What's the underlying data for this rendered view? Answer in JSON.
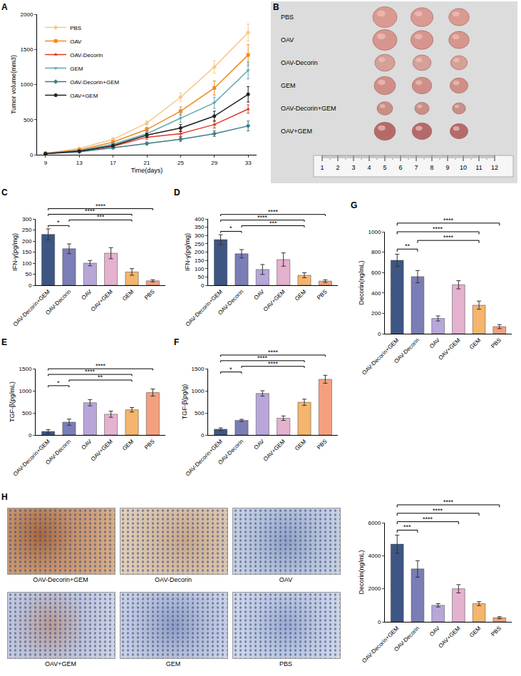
{
  "chart_data": [
    {
      "panel": "A",
      "type": "line",
      "x_label": "Time(days)",
      "y_label": "Tumor volume(mm3)",
      "x": [
        9,
        13,
        17,
        21,
        25,
        29,
        33
      ],
      "xlim": [
        8,
        34
      ],
      "xticks": [
        9,
        13,
        17,
        21,
        25,
        29,
        33
      ],
      "ylim": [
        0,
        2000
      ],
      "yticks": [
        0,
        500,
        1000,
        1500,
        2000
      ],
      "grid": false,
      "legend": "top left",
      "series": [
        {
          "name": "PBS",
          "color": "#f5c98e",
          "marker": "diamond",
          "values": [
            20,
            90,
            220,
            450,
            820,
            1250,
            1740
          ],
          "errors": [
            5,
            10,
            20,
            30,
            60,
            90,
            120
          ]
        },
        {
          "name": "OAV",
          "color": "#f08a24",
          "marker": "square",
          "values": [
            20,
            70,
            180,
            360,
            620,
            950,
            1420
          ],
          "errors": [
            5,
            10,
            20,
            30,
            60,
            100,
            150
          ]
        },
        {
          "name": "OAV-Decorin",
          "color": "#e03c28",
          "marker": "triangle-up",
          "values": [
            15,
            50,
            120,
            250,
            300,
            430,
            650
          ],
          "errors": [
            3,
            8,
            15,
            30,
            40,
            50,
            60
          ]
        },
        {
          "name": "GEM",
          "color": "#5fa8b0",
          "marker": "triangle-down",
          "values": [
            15,
            60,
            150,
            300,
            520,
            740,
            1200
          ],
          "errors": [
            4,
            10,
            20,
            40,
            60,
            80,
            120
          ]
        },
        {
          "name": "OAV-Decorin+GEM",
          "color": "#3e7c86",
          "marker": "diamond",
          "values": [
            15,
            40,
            100,
            160,
            220,
            300,
            410
          ],
          "errors": [
            3,
            6,
            12,
            20,
            30,
            40,
            70
          ]
        },
        {
          "name": "OAV+GEM",
          "color": "#222222",
          "marker": "circle",
          "values": [
            15,
            50,
            130,
            280,
            380,
            550,
            860
          ],
          "errors": [
            3,
            8,
            20,
            30,
            50,
            70,
            110
          ]
        }
      ]
    },
    {
      "panel": "C",
      "type": "bar",
      "y_label": "IFN-γ(pg/mg)",
      "categories": [
        "OAV-Decorin+GEM",
        "OAV-Decorin",
        "OAV",
        "OAV+GEM",
        "GEM",
        "PBS"
      ],
      "values": [
        230,
        165,
        100,
        145,
        60,
        20
      ],
      "errors": [
        25,
        22,
        12,
        25,
        15,
        5
      ],
      "colors": [
        "#3e5683",
        "#7b7db6",
        "#b8a6d9",
        "#e4b1cf",
        "#f4b56e",
        "#f4a07e"
      ],
      "ylim": [
        0,
        300
      ],
      "yticks": [
        0,
        50,
        100,
        150,
        200,
        250,
        300
      ],
      "grid": false,
      "significance": [
        {
          "from": "OAV-Decorin+GEM",
          "to": "PBS",
          "label": "****"
        },
        {
          "from": "OAV-Decorin+GEM",
          "to": "GEM",
          "label": "****"
        },
        {
          "from": "OAV-Decorin+GEM",
          "to": "OAV-Decorin",
          "label": "*"
        },
        {
          "from": "OAV-Decorin",
          "to": "GEM",
          "label": "***"
        }
      ]
    },
    {
      "panel": "D",
      "type": "bar",
      "y_label": "IFN-γ(pg/mg)",
      "categories": [
        "OAV-Decorin+GEM",
        "OAV-Decorin",
        "OAV",
        "OAV+GEM",
        "GEM",
        "PBS"
      ],
      "values": [
        275,
        190,
        95,
        155,
        60,
        25
      ],
      "errors": [
        30,
        25,
        30,
        40,
        15,
        8
      ],
      "colors": [
        "#3e5683",
        "#7b7db6",
        "#b8a6d9",
        "#e4b1cf",
        "#f4b56e",
        "#f4a07e"
      ],
      "ylim": [
        0,
        400
      ],
      "yticks": [
        0,
        50,
        100,
        150,
        200,
        250,
        300,
        350,
        400
      ],
      "grid": false,
      "significance": [
        {
          "from": "OAV-Decorin+GEM",
          "to": "PBS",
          "label": "****"
        },
        {
          "from": "OAV-Decorin+GEM",
          "to": "GEM",
          "label": "****"
        },
        {
          "from": "OAV-Decorin+GEM",
          "to": "OAV-Decorin",
          "label": "*"
        },
        {
          "from": "OAV-Decorin",
          "to": "GEM",
          "label": "***"
        }
      ]
    },
    {
      "panel": "E",
      "type": "bar",
      "y_label": "TGF-β(pg/mL)",
      "categories": [
        "OAV-Decorin+GEM",
        "OAV-Decorin",
        "OAV",
        "OAV+GEM",
        "GEM",
        "PBS"
      ],
      "values": [
        80,
        290,
        730,
        470,
        570,
        960
      ],
      "errors": [
        40,
        70,
        70,
        70,
        50,
        80
      ],
      "colors": [
        "#3e5683",
        "#7b7db6",
        "#b8a6d9",
        "#e4b1cf",
        "#f4b56e",
        "#f4a07e"
      ],
      "ylim": [
        0,
        1500
      ],
      "yticks": [
        0,
        500,
        1000,
        1500
      ],
      "grid": false,
      "significance": [
        {
          "from": "OAV-Decorin+GEM",
          "to": "PBS",
          "label": "****"
        },
        {
          "from": "OAV-Decorin+GEM",
          "to": "GEM",
          "label": "****"
        },
        {
          "from": "OAV-Decorin+GEM",
          "to": "OAV-Decorin",
          "label": "*"
        },
        {
          "from": "OAV-Decorin",
          "to": "GEM",
          "label": "**"
        }
      ]
    },
    {
      "panel": "F",
      "type": "bar",
      "y_label": "TGF-β(pg/g)",
      "categories": [
        "OAV-Decorin+GEM",
        "OAV-Decorin",
        "OAV",
        "OAV+GEM",
        "GEM",
        "PBS"
      ],
      "values": [
        130,
        330,
        940,
        380,
        740,
        1260
      ],
      "errors": [
        30,
        25,
        60,
        50,
        70,
        90
      ],
      "colors": [
        "#3e5683",
        "#7b7db6",
        "#b8a6d9",
        "#e4b1cf",
        "#f4b56e",
        "#f4a07e"
      ],
      "ylim": [
        0,
        1500
      ],
      "yticks": [
        0,
        500,
        1000,
        1500
      ],
      "grid": false,
      "significance": [
        {
          "from": "OAV-Decorin+GEM",
          "to": "PBS",
          "label": "****"
        },
        {
          "from": "OAV-Decorin+GEM",
          "to": "GEM",
          "label": "****"
        },
        {
          "from": "OAV-Decorin",
          "to": "GEM",
          "label": "****"
        },
        {
          "from": "OAV-Decorin+GEM",
          "to": "OAV-Decorin",
          "label": "*"
        }
      ]
    },
    {
      "panel": "G",
      "type": "bar",
      "y_label": "Decorin(ng/mL)",
      "categories": [
        "OAV-Decorin+GEM",
        "OAV-Decorin",
        "OAV",
        "OAV+GEM",
        "GEM",
        "PBS"
      ],
      "values": [
        720,
        560,
        150,
        480,
        280,
        70
      ],
      "errors": [
        60,
        60,
        25,
        40,
        40,
        20
      ],
      "colors": [
        "#3e5683",
        "#7b7db6",
        "#b8a6d9",
        "#e4b1cf",
        "#f4b56e",
        "#f4a07e"
      ],
      "ylim": [
        0,
        1000
      ],
      "yticks": [
        0,
        200,
        400,
        600,
        800,
        1000
      ],
      "grid": false,
      "significance": [
        {
          "from": "OAV-Decorin+GEM",
          "to": "PBS",
          "label": "****"
        },
        {
          "from": "OAV-Decorin+GEM",
          "to": "GEM",
          "label": "****"
        },
        {
          "from": "OAV-Decorin+GEM",
          "to": "OAV-Decorin",
          "label": "**"
        },
        {
          "from": "OAV-Decorin",
          "to": "GEM",
          "label": "****"
        }
      ]
    },
    {
      "panel": "H",
      "type": "bar",
      "y_label": "Decorin(ng/mL)",
      "categories": [
        "OAV-Decorin+GEM",
        "OAV-Decorin",
        "OAV",
        "OAV+GEM",
        "GEM",
        "PBS"
      ],
      "values": [
        4700,
        3200,
        1000,
        2000,
        1100,
        250
      ],
      "errors": [
        550,
        500,
        100,
        250,
        120,
        60
      ],
      "colors": [
        "#3e5683",
        "#7b7db6",
        "#b8a6d9",
        "#e4b1cf",
        "#f4b56e",
        "#f4a07e"
      ],
      "ylim": [
        0,
        6000
      ],
      "yticks": [
        0,
        2000,
        4000,
        6000
      ],
      "grid": false,
      "significance": [
        {
          "from": "OAV-Decorin+GEM",
          "to": "PBS",
          "label": "****"
        },
        {
          "from": "OAV-Decorin+GEM",
          "to": "GEM",
          "label": "****"
        },
        {
          "from": "OAV-Decorin+GEM",
          "to": "OAV+GEM",
          "label": "****"
        },
        {
          "from": "OAV-Decorin+GEM",
          "to": "OAV-Decorin",
          "label": "***"
        }
      ]
    }
  ],
  "photo": {
    "panel": "B",
    "groups": [
      "PBS",
      "OAV",
      "OAV-Decorin",
      "GEM",
      "OAV-Decorin+GEM",
      "OAV+GEM"
    ],
    "ruler": [
      1,
      2,
      3,
      4,
      5,
      6,
      7,
      8,
      9,
      10,
      11,
      12
    ]
  },
  "micrographs": {
    "captions": [
      "OAV-Decorin+GEM",
      "OAV-Decorin",
      "OAV",
      "OAV+GEM",
      "GEM",
      "PBS"
    ]
  }
}
